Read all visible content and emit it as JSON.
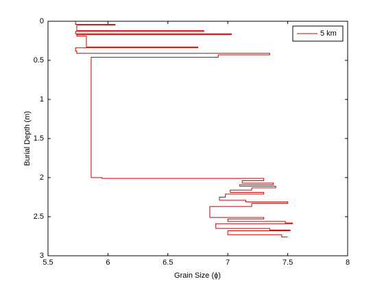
{
  "chart_data": {
    "type": "line",
    "xlabel": "Grain Size (ϕ)",
    "ylabel": "Burial Depth (m)",
    "x": [
      5.73,
      5.73,
      6.06,
      6.06,
      5.74,
      5.74,
      6.8,
      6.8,
      5.73,
      5.73,
      7.03,
      7.03,
      5.74,
      5.74,
      5.82,
      5.82,
      6.75,
      6.75,
      5.73,
      5.73,
      5.74,
      5.74,
      7.35,
      7.35,
      6.92,
      6.92,
      5.86,
      5.86,
      5.95,
      5.95,
      7.3,
      7.3,
      7.12,
      7.12,
      7.38,
      7.38,
      7.1,
      7.1,
      7.4,
      7.4,
      7.2,
      7.2,
      7.02,
      7.02,
      7.3,
      7.3,
      6.98,
      6.98,
      6.93,
      6.93,
      7.15,
      7.15,
      7.5,
      7.5,
      7.2,
      7.2,
      6.85,
      6.85,
      7.3,
      7.3,
      7.0,
      7.0,
      7.48,
      7.48,
      7.54,
      7.54,
      6.9,
      6.9,
      7.35,
      7.35,
      7.52,
      7.52,
      7.0,
      7.0,
      7.45,
      7.45,
      7.5
    ],
    "series": [
      {
        "name": "5 km",
        "color": "#cc0000",
        "values": [
          0,
          0.04,
          0.04,
          0.05,
          0.05,
          0.12,
          0.12,
          0.13,
          0.13,
          0.16,
          0.16,
          0.17,
          0.17,
          0.19,
          0.19,
          0.33,
          0.33,
          0.34,
          0.34,
          0.38,
          0.38,
          0.41,
          0.41,
          0.43,
          0.43,
          0.46,
          0.46,
          2.0,
          2.0,
          2.01,
          2.01,
          2.04,
          2.04,
          2.07,
          2.07,
          2.09,
          2.09,
          2.11,
          2.11,
          2.13,
          2.13,
          2.16,
          2.16,
          2.19,
          2.19,
          2.21,
          2.21,
          2.25,
          2.25,
          2.29,
          2.29,
          2.31,
          2.31,
          2.33,
          2.33,
          2.37,
          2.37,
          2.51,
          2.51,
          2.53,
          2.53,
          2.56,
          2.56,
          2.58,
          2.58,
          2.59,
          2.59,
          2.65,
          2.65,
          2.67,
          2.67,
          2.68,
          2.68,
          2.73,
          2.73,
          2.76,
          2.76
        ]
      }
    ],
    "xlim": [
      5.5,
      8
    ],
    "xticks": [
      5.5,
      6,
      6.5,
      7,
      7.5,
      8
    ],
    "ylim": [
      0,
      3
    ],
    "yticks": [
      0,
      0.5,
      1,
      1.5,
      2,
      2.5,
      3
    ],
    "y_reversed": true,
    "legend": "northeast"
  }
}
